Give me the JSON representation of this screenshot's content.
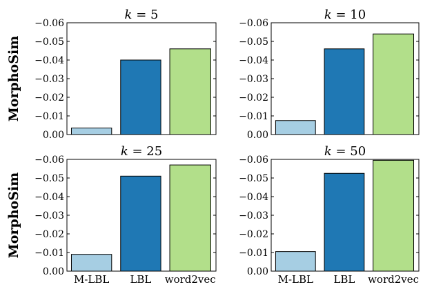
{
  "chart_data": [
    {
      "type": "bar",
      "title_var": "k",
      "title_value": "5",
      "categories": [
        "M-LBL",
        "LBL",
        "word2vec"
      ],
      "values": [
        -0.0035,
        -0.04,
        -0.046
      ],
      "colors": [
        "#a6cee3",
        "#1f78b4",
        "#b2df8a"
      ],
      "ylabel": "MorphoSim",
      "ylim": [
        0.0,
        -0.06
      ],
      "yticks": [
        "0.00",
        "−0.01",
        "−0.02",
        "−0.03",
        "−0.04",
        "−0.05",
        "−0.06"
      ]
    },
    {
      "type": "bar",
      "title_var": "k",
      "title_value": "10",
      "categories": [
        "M-LBL",
        "LBL",
        "word2vec"
      ],
      "values": [
        -0.0075,
        -0.046,
        -0.054
      ],
      "colors": [
        "#a6cee3",
        "#1f78b4",
        "#b2df8a"
      ],
      "ylabel": "",
      "ylim": [
        0.0,
        -0.06
      ],
      "yticks": [
        "0.00",
        "−0.01",
        "−0.02",
        "−0.03",
        "−0.04",
        "−0.05",
        "−0.06"
      ]
    },
    {
      "type": "bar",
      "title_var": "k",
      "title_value": "25",
      "categories": [
        "M-LBL",
        "LBL",
        "word2vec"
      ],
      "values": [
        -0.009,
        -0.051,
        -0.057
      ],
      "colors": [
        "#a6cee3",
        "#1f78b4",
        "#b2df8a"
      ],
      "ylabel": "MorphoSim",
      "ylim": [
        0.0,
        -0.06
      ],
      "yticks": [
        "0.00",
        "−0.01",
        "−0.02",
        "−0.03",
        "−0.04",
        "−0.05",
        "−0.06"
      ]
    },
    {
      "type": "bar",
      "title_var": "k",
      "title_value": "50",
      "categories": [
        "M-LBL",
        "LBL",
        "word2vec"
      ],
      "values": [
        -0.0105,
        -0.0525,
        -0.0595
      ],
      "colors": [
        "#a6cee3",
        "#1f78b4",
        "#b2df8a"
      ],
      "ylabel": "",
      "ylim": [
        0.0,
        -0.06
      ],
      "yticks": [
        "0.00",
        "−0.01",
        "−0.02",
        "−0.03",
        "−0.04",
        "−0.05",
        "−0.06"
      ]
    }
  ]
}
